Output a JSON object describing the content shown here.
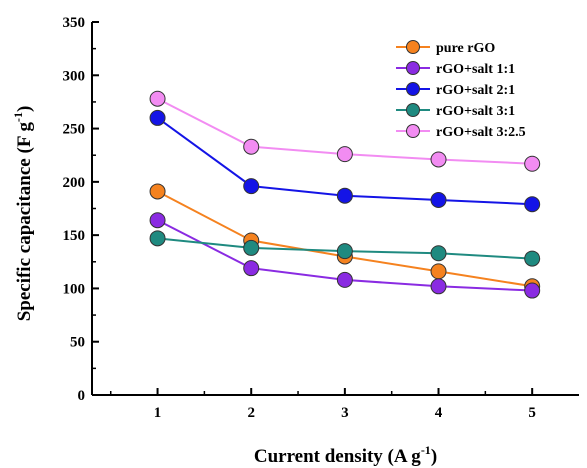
{
  "chart_data": {
    "type": "line",
    "x": [
      1,
      2,
      3,
      4,
      5
    ],
    "x_tick_labels": [
      "1",
      "2",
      "3",
      "4",
      "5"
    ],
    "y_tick_labels": [
      "0",
      "50",
      "100",
      "150",
      "200",
      "250",
      "300",
      "350"
    ],
    "xlim": [
      0.3,
      5.5
    ],
    "ylim": [
      0,
      350
    ],
    "y_ticks": [
      0,
      50,
      100,
      150,
      200,
      250,
      300,
      350
    ],
    "xlabel_main": "Current density (A g",
    "xlabel_sup": "-1",
    "xlabel_close": ")",
    "ylabel_main": "Specific capacitance (F g",
    "ylabel_sup": "-1",
    "ylabel_close": ")",
    "grid": false,
    "legend_position": "top-right",
    "series": [
      {
        "name": "pure rGO",
        "color": "#f5821f",
        "values": [
          191,
          145,
          130,
          116,
          102
        ]
      },
      {
        "name": "rGO+salt 1:1",
        "color": "#8a2be2",
        "values": [
          164,
          119,
          108,
          102,
          98
        ]
      },
      {
        "name": "rGO+salt 2:1",
        "color": "#1414e6",
        "values": [
          260,
          196,
          187,
          183,
          179
        ]
      },
      {
        "name": "rGO+salt 3:1",
        "color": "#1f8a80",
        "values": [
          147,
          138,
          135,
          133,
          128
        ]
      },
      {
        "name": "rGO+salt 3:2.5",
        "color": "#f28cf2",
        "values": [
          278,
          233,
          226,
          221,
          217
        ]
      }
    ]
  }
}
